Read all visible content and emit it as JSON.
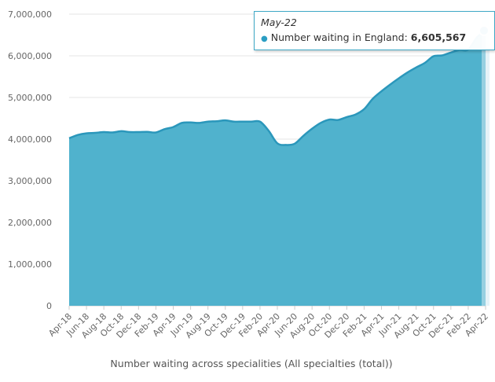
{
  "chart_data": {
    "type": "area",
    "title": "",
    "xlabel": "Number waiting across specialities (All specialties (total))",
    "ylabel": "",
    "ylim": [
      0,
      7000000
    ],
    "yticks": [
      0,
      1000000,
      2000000,
      3000000,
      4000000,
      5000000,
      6000000,
      7000000
    ],
    "ytick_labels": [
      "0",
      "1,000,000",
      "2,000,000",
      "3,000,000",
      "4,000,000",
      "5,000,000",
      "6,000,000",
      "7,000,000"
    ],
    "xtick_labels": [
      "Apr-18",
      "Jun-18",
      "Aug-18",
      "Oct-18",
      "Dec-18",
      "Feb-19",
      "Apr-19",
      "Jun-19",
      "Aug-19",
      "Oct-19",
      "Dec-19",
      "Feb-20",
      "Apr-20",
      "Jun-20",
      "Aug-20",
      "Oct-20",
      "Dec-20",
      "Feb-21",
      "Apr-21",
      "Jun-21",
      "Aug-21",
      "Oct-21",
      "Dec-21",
      "Feb-22",
      "Apr-22"
    ],
    "series": [
      {
        "name": "Number waiting in England",
        "color": "#4aafcb",
        "values": [
          4020000,
          4100000,
          4140000,
          4150000,
          4170000,
          4160000,
          4190000,
          4170000,
          4170000,
          4175000,
          4160000,
          4240000,
          4290000,
          4390000,
          4400000,
          4390000,
          4420000,
          4430000,
          4450000,
          4420000,
          4420000,
          4420000,
          4420000,
          4200000,
          3900000,
          3860000,
          3890000,
          4080000,
          4250000,
          4390000,
          4470000,
          4460000,
          4530000,
          4590000,
          4720000,
          4970000,
          5150000,
          5310000,
          5460000,
          5600000,
          5720000,
          5830000,
          5990000,
          6010000,
          6080000,
          6140000,
          6150000,
          6440000,
          6605567
        ]
      }
    ],
    "highlight": {
      "category": "May-22",
      "series_label": "Number waiting in England:",
      "value_label": "6,605,567"
    }
  }
}
